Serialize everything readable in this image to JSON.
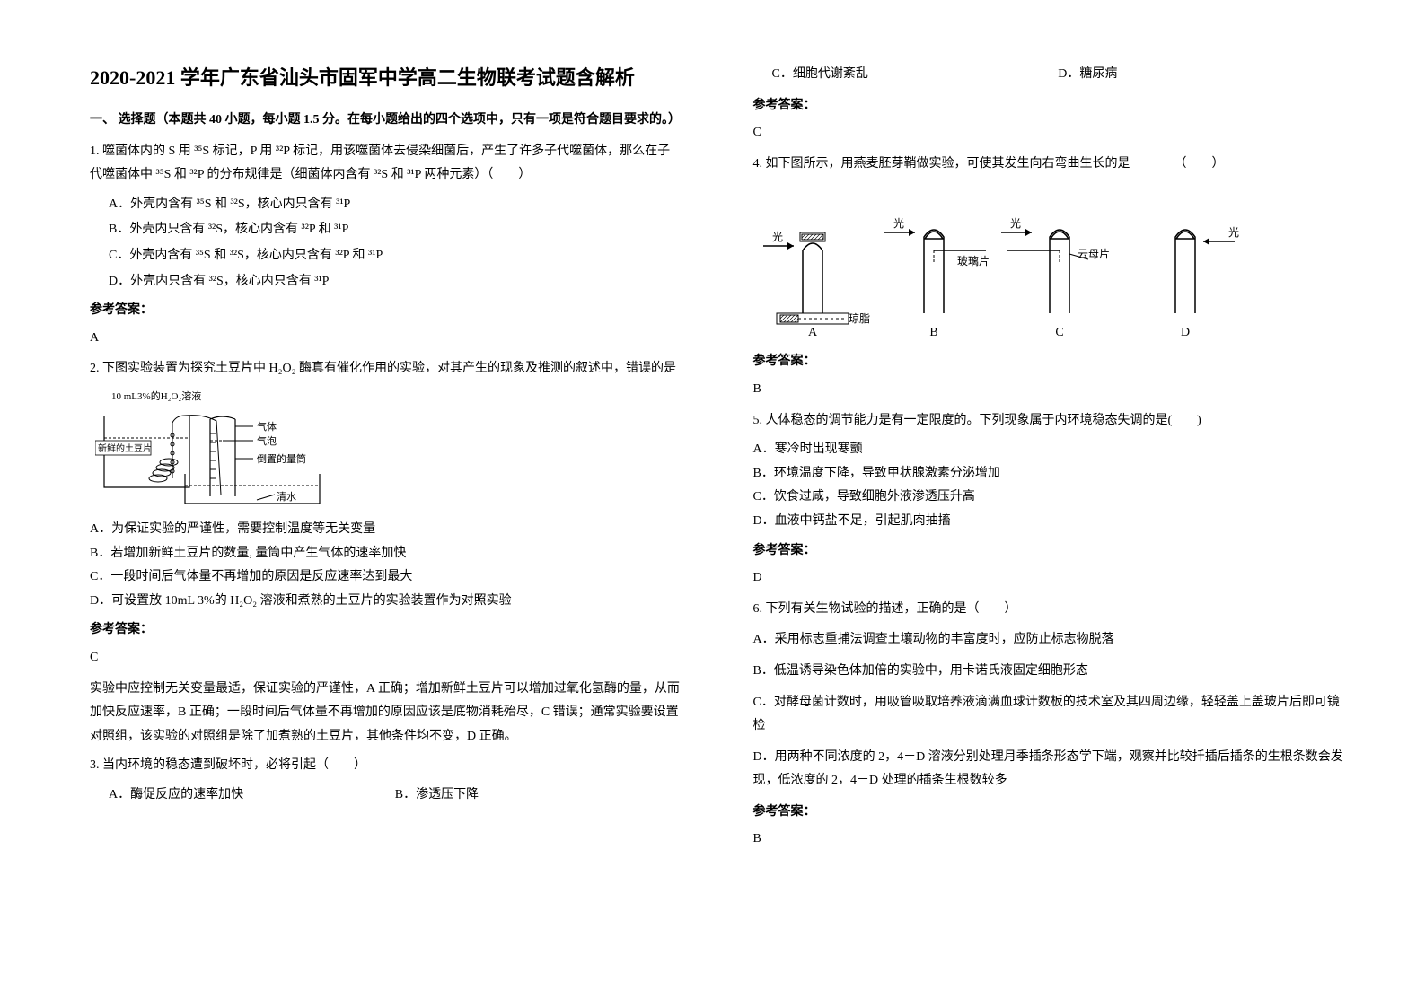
{
  "title": "2020-2021 学年广东省汕头市固军中学高二生物联考试题含解析",
  "section1": "一、 选择题（本题共 40 小题，每小题 1.5 分。在每小题给出的四个选项中，只有一项是符合题目要求的。）",
  "q1": {
    "stem": "1. 噬菌体内的 S 用 ³⁵S 标记，P 用 ³²P 标记，用该噬菌体去侵染细菌后，产生了许多子代噬菌体，那么在子代噬菌体中 ³⁵S 和 ³²P 的分布规律是（细菌体内含有 ³²S 和 ³¹P 两种元素）（　　）",
    "A": "A．外壳内含有 ³⁵S 和 ³²S，核心内只含有 ³¹P",
    "B": "B．外壳内只含有 ³²S，核心内含有 ³²P 和 ³¹P",
    "C": "C．外壳内含有 ³⁵S 和 ³²S，核心内只含有 ³²P 和 ³¹P",
    "D": "D．外壳内只含有 ³²S，核心内只含有 ³¹P",
    "ansLabel": "参考答案：",
    "ans": "A"
  },
  "q2": {
    "stem": "2. 下图实验装置为探究土豆片中 H₂O₂ 酶真有催化作用的实验，对其产生的现象及推测的叙述中，错误的是",
    "diag": {
      "top": "10 mL3%的H₂O₂溶液",
      "potato": "新鲜的土豆片",
      "gas": "气体",
      "bubble": "气泡",
      "cyl": "倒置的量筒",
      "water": "清水",
      "stroke": "#000",
      "fontsize": 11
    },
    "A": "A．为保证实验的严谨性，需要控制温度等无关变量",
    "B": "B．若增加新鲜土豆片的数量, 量筒中产生气体的速率加快",
    "C": "C．一段时间后气体量不再增加的原因是反应速率达到最大",
    "D": "D．可设置放 10mL 3%的 H₂O₂ 溶液和煮熟的土豆片的实验装置作为对照实验",
    "ansLabel": "参考答案：",
    "ans": "C",
    "expl": "实验中应控制无关变量最适，保证实验的严谨性，A 正确；增加新鲜土豆片可以增加过氧化氢酶的量，从而加快反应速率，B 正确；一段时间后气体量不再增加的原因应该是底物消耗殆尽，C 错误；通常实验要设置对照组，该实验的对照组是除了加煮熟的土豆片，其他条件均不变，D 正确。"
  },
  "q3": {
    "stem": "3. 当内环境的稳态遭到破坏时，必将引起（　　）",
    "A": "A．酶促反应的速率加快",
    "B": "B．渗透压下降",
    "C": "C．细胞代谢紊乱",
    "D": "D．糖尿病",
    "ansLabel": "参考答案：",
    "ans": "C"
  },
  "q4": {
    "stem": "4. 如下图所示，用燕麦胚芽鞘做实验，可使其发生向右弯曲生长的是　　　　（　　）",
    "diag": {
      "labelA": "A",
      "labelB": "B",
      "labelC": "C",
      "labelD": "D",
      "light": "光",
      "agar": "琼脂",
      "glass": "玻璃片",
      "mica": "云母片",
      "stroke": "#000",
      "fontsize": 12
    },
    "ansLabel": "参考答案：",
    "ans": "B"
  },
  "q5": {
    "stem": "5. 人体稳态的调节能力是有一定限度的。下列现象属于内环境稳态失调的是(　　)",
    "A": "A．寒冷时出现寒颤",
    "B": "B．环境温度下降，导致甲状腺激素分泌增加",
    "C": "C．饮食过咸，导致细胞外液渗透压升高",
    "D": "D．血液中钙盐不足，引起肌肉抽搐",
    "ansLabel": "参考答案：",
    "ans": "D"
  },
  "q6": {
    "stem": "6. 下列有关生物试验的描述，正确的是（　　）",
    "A": "A．采用标志重捕法调查土壤动物的丰富度时，应防止标志物脱落",
    "B": "B．低温诱导染色体加倍的实验中，用卡诺氏液固定细胞形态",
    "C": "C．对酵母菌计数时，用吸管吸取培养液滴满血球计数板的技术室及其四周边缘，轻轻盖上盖玻片后即可镜检",
    "D": "D．用两种不同浓度的 2，4－D 溶液分别处理月季插条形态学下端，观察并比较扦插后插条的生根条数会发现，低浓度的 2，4－D 处理的插条生根数较多",
    "ansLabel": "参考答案：",
    "ans": "B"
  }
}
